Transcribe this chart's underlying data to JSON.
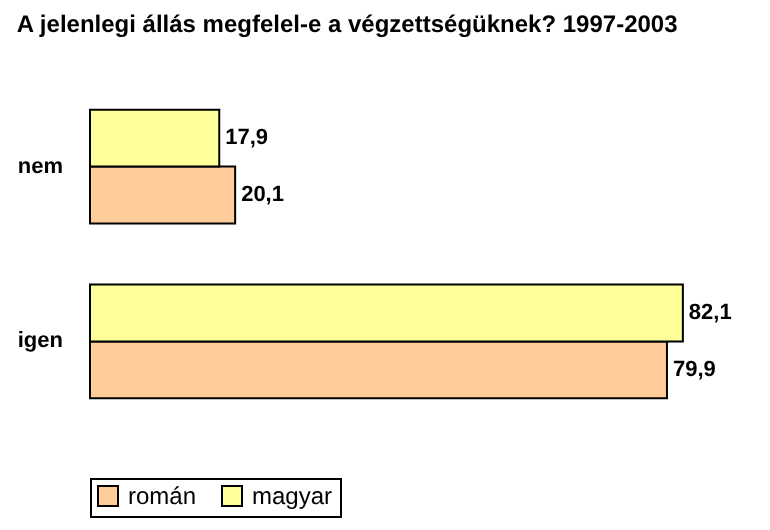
{
  "chart_data": {
    "type": "bar",
    "orientation": "horizontal",
    "title": "A jelenlegi állás megfelel-e a végzettségüknek? 1997-2003",
    "categories": [
      "nem",
      "igen"
    ],
    "series": [
      {
        "name": "román",
        "color": "#ffcc99",
        "values": [
          20.1,
          79.9
        ],
        "value_labels": [
          "20,1",
          "79,9"
        ]
      },
      {
        "name": "magyar",
        "color": "#ffff99",
        "values": [
          17.9,
          82.1
        ],
        "value_labels": [
          "17,9",
          "82,1"
        ]
      }
    ],
    "legend": "bottom",
    "grid": false
  }
}
